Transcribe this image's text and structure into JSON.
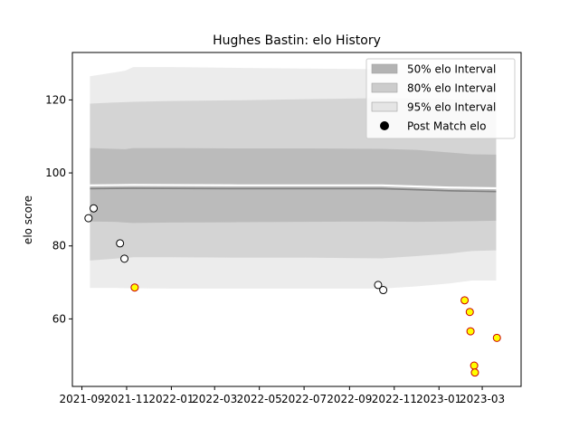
{
  "chart_data": {
    "type": "line",
    "title": "Hughes Bastin: elo History",
    "xlabel": "",
    "ylabel": "elo score",
    "xlim": [
      "2021-08-19",
      "2023-04-23"
    ],
    "ylim": [
      41.5,
      133
    ],
    "x_ticks": [
      {
        "date": "2021-09-01",
        "label": "2021-09"
      },
      {
        "date": "2021-11-01",
        "label": "2021-11"
      },
      {
        "date": "2022-01-01",
        "label": "2022-01"
      },
      {
        "date": "2022-03-01",
        "label": "2022-03"
      },
      {
        "date": "2022-05-01",
        "label": "2022-05"
      },
      {
        "date": "2022-07-01",
        "label": "2022-07"
      },
      {
        "date": "2022-09-01",
        "label": "2022-09"
      },
      {
        "date": "2022-11-01",
        "label": "2022-11"
      },
      {
        "date": "2023-01-01",
        "label": "2023-01"
      },
      {
        "date": "2023-03-01",
        "label": "2023-03"
      }
    ],
    "y_ticks": [
      60,
      80,
      100,
      120
    ],
    "bands": [
      {
        "name": "95% elo Interval",
        "color": "#e5e5e5",
        "x": [
          "2021-09-12",
          "2021-10-15",
          "2021-10-30",
          "2021-11-10",
          "2022-01-01",
          "2022-04-01",
          "2022-07-01",
          "2022-10-15",
          "2022-12-01",
          "2023-01-15",
          "2023-02-15",
          "2023-03-20"
        ],
        "upper": [
          126.5,
          127.5,
          128,
          129,
          129,
          128.8,
          128.6,
          128.4,
          128.2,
          128,
          127.8,
          127.6
        ],
        "lower": [
          68.5,
          68.5,
          68.4,
          68.4,
          68.3,
          68.3,
          68.3,
          68.3,
          68.9,
          69.7,
          70.5,
          70.5
        ]
      },
      {
        "name": "80% elo Interval",
        "color": "#cccccc",
        "x": [
          "2021-09-12",
          "2021-10-15",
          "2021-10-30",
          "2021-11-10",
          "2022-01-01",
          "2022-04-01",
          "2022-07-01",
          "2022-10-15",
          "2022-12-01",
          "2023-01-15",
          "2023-02-15",
          "2023-03-20"
        ],
        "upper": [
          119,
          119.3,
          119.4,
          119.5,
          119.7,
          119.9,
          120.2,
          120.5,
          120.4,
          120.2,
          120,
          120
        ],
        "lower": [
          76,
          76.5,
          76.7,
          76.9,
          76.9,
          76.8,
          76.8,
          76.6,
          77.2,
          77.9,
          78.6,
          78.8
        ]
      },
      {
        "name": "50% elo Interval",
        "color": "#b3b3b3",
        "x": [
          "2021-09-12",
          "2021-10-15",
          "2021-10-30",
          "2021-11-10",
          "2022-01-01",
          "2022-04-01",
          "2022-07-01",
          "2022-10-15",
          "2022-12-01",
          "2023-01-15",
          "2023-02-15",
          "2023-03-20"
        ],
        "upper": [
          106.8,
          106.6,
          106.5,
          106.8,
          106.8,
          106.7,
          106.7,
          106.6,
          106.3,
          105.6,
          105.1,
          105
        ],
        "lower": [
          86.7,
          86.6,
          86.4,
          86.3,
          86.4,
          86.5,
          86.6,
          86.7,
          86.6,
          86.7,
          86.8,
          86.9
        ]
      }
    ],
    "mean_line": {
      "x": [
        "2021-09-12",
        "2021-11-10",
        "2022-04-01",
        "2022-10-15",
        "2023-01-15",
        "2023-02-15",
        "2023-03-20"
      ],
      "y": [
        95.7,
        95.8,
        95.7,
        95.7,
        95.1,
        95,
        94.9
      ],
      "color": "#808080"
    },
    "series": [
      {
        "name": "Post Match elo",
        "color": "#ffffff",
        "edge": "#000000",
        "x": [
          "2021-09-10",
          "2021-09-17",
          "2021-10-23",
          "2021-10-29",
          "2022-10-10",
          "2022-10-17"
        ],
        "y": [
          87.6,
          90.3,
          80.7,
          76.5,
          69.3,
          67.9
        ]
      },
      {
        "color": "#ffff00",
        "edge": "#cc0000",
        "x": [
          "2021-11-12",
          "2023-02-05",
          "2023-02-12",
          "2023-02-13",
          "2023-02-18",
          "2023-02-19",
          "2023-03-21"
        ],
        "y": [
          68.6,
          65.1,
          61.9,
          56.6,
          47.2,
          45.3,
          54.8
        ]
      }
    ],
    "legend": {
      "position": "top-right",
      "entries": [
        {
          "label": "50% elo Interval",
          "kind": "patch",
          "color": "#b3b3b3"
        },
        {
          "label": "80% elo Interval",
          "kind": "patch",
          "color": "#cccccc"
        },
        {
          "label": "95% elo Interval",
          "kind": "patch",
          "color": "#e5e5e5"
        },
        {
          "label": "Post Match elo",
          "kind": "marker",
          "color": "#000000"
        }
      ]
    },
    "grid": false
  }
}
